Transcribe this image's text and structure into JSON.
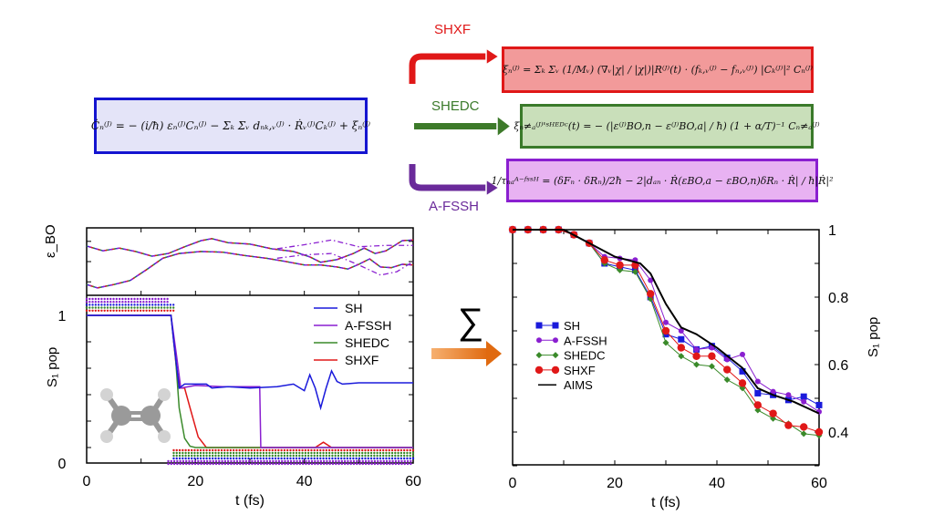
{
  "equations": {
    "main": "Ċₙ⁽ᴶ⁾ = − (i/ħ) εₙ⁽ᴶ⁾Cₙ⁽ᴶ⁾ − Σₖ Σᵥ dₙₖ,ᵥ⁽ᴶ⁾ · Ṙᵥ⁽ᴶ⁾Cₖ⁽ᴶ⁾ + ξₙ⁽ᴶ⁾",
    "shxf": "ξₙ⁽ᴶ⁾ = Σₖ Σᵥ (1/Mᵥ) (∇ᵥ|χ| / |χ|)|R⁽ᴶ⁾(t) · (fₖ,ᵥ⁽ᴶ⁾ − fₙ,ᵥ⁽ᴶ⁾) |Cₖ⁽ᴶ⁾|² Cₙ⁽ᴶ⁾",
    "shedc": "ξₙ≠ₐ⁽ᴶ⁾'ˢᴴᴱᴰᶜ(t) = − (|ε⁽ᴶ⁾BO,n − ε⁽ᴶ⁾BO,a| / ħ) (1 + α/T)⁻¹ Cₙ≠ₐ⁽ᴶ⁾",
    "afssh": "1/τₙₐᴬ⁻ᶠˢˢᴴ = (δFₙ · δRₙ)/2ħ − 2|dₐₙ · Ṙ(εBO,a − εBO,n)δRₙ · Ṙ| / ħ|Ṙ|²"
  },
  "arrows": {
    "shxf": "SHXF",
    "shedc": "SHEDC",
    "afssh": "A-FSSH"
  },
  "sum_symbol": "∑",
  "colors": {
    "SH": "#1a1adb",
    "A-FSSH": "#8a1fd0",
    "SHEDC": "#3a8a2a",
    "SHXF": "#e01818",
    "AIMS": "#000000",
    "orange_arrow": "#e07a20"
  },
  "chart_data": [
    {
      "type": "line",
      "panel": "epsilon_BO",
      "ylabel": "ε_BO",
      "xlim": [
        0,
        60
      ],
      "series": [
        {
          "style": "solid",
          "x": [
            0,
            3,
            6,
            9,
            12,
            15,
            18,
            21,
            23,
            26,
            30,
            34,
            38,
            41,
            43,
            46,
            49,
            51,
            53,
            55,
            58,
            60
          ],
          "y": [
            0.73,
            0.66,
            0.7,
            0.65,
            0.58,
            0.62,
            0.72,
            0.81,
            0.84,
            0.78,
            0.76,
            0.69,
            0.65,
            0.57,
            0.49,
            0.53,
            0.62,
            0.7,
            0.62,
            0.66,
            0.81,
            0.82
          ]
        },
        {
          "style": "solid",
          "x": [
            0,
            2,
            5,
            8,
            11,
            14,
            17,
            21,
            25,
            29,
            33,
            36,
            40,
            43,
            46,
            48,
            50,
            52,
            54,
            56,
            58,
            60
          ],
          "y": [
            0.16,
            0.11,
            0.16,
            0.22,
            0.38,
            0.55,
            0.62,
            0.65,
            0.64,
            0.59,
            0.55,
            0.51,
            0.45,
            0.45,
            0.42,
            0.39,
            0.46,
            0.54,
            0.42,
            0.41,
            0.46,
            0.45
          ]
        },
        {
          "style": "dashdot",
          "x": [
            35,
            40,
            45,
            50,
            55,
            60
          ],
          "y": [
            0.69,
            0.75,
            0.82,
            0.72,
            0.74,
            0.74
          ]
        },
        {
          "style": "dashdot",
          "x": [
            35,
            40,
            45,
            50,
            54,
            57,
            60
          ],
          "y": [
            0.55,
            0.6,
            0.62,
            0.45,
            0.3,
            0.35,
            0.5
          ]
        }
      ]
    },
    {
      "type": "line",
      "panel": "S1_population_single",
      "xlabel": "t (fs)",
      "ylabel": "S₁ pop",
      "xlim": [
        0,
        60
      ],
      "ylim": [
        0,
        1
      ],
      "xticks": [
        "0",
        "20",
        "40",
        "60"
      ],
      "yticks": [
        "0",
        "1"
      ],
      "legend": "top-right",
      "series": [
        {
          "name": "SH",
          "x": [
            0,
            15.5,
            16,
            17,
            18,
            20,
            22,
            23,
            26,
            30,
            35,
            38,
            40,
            41,
            42,
            43,
            44,
            45,
            46,
            47,
            50,
            60
          ],
          "y": [
            1,
            1,
            0.8,
            0.45,
            0.48,
            0.48,
            0.48,
            0.45,
            0.46,
            0.45,
            0.46,
            0.48,
            0.43,
            0.55,
            0.45,
            0.3,
            0.45,
            0.58,
            0.5,
            0.48,
            0.49,
            0.49
          ]
        },
        {
          "name": "A-FSSH",
          "x": [
            0,
            15.5,
            16.5,
            17.3,
            20,
            25,
            31.8,
            32,
            60
          ],
          "y": [
            1,
            1,
            0.7,
            0.45,
            0.47,
            0.46,
            0.46,
            0,
            0
          ]
        },
        {
          "name": "SHEDC",
          "x": [
            0,
            15.5,
            16.3,
            17,
            18,
            19,
            20,
            60
          ],
          "y": [
            1,
            1,
            0.7,
            0.3,
            0.07,
            0.01,
            0,
            0
          ]
        },
        {
          "name": "SHXF",
          "x": [
            0,
            15.5,
            16.5,
            17.2,
            18,
            19,
            20.5,
            22,
            42,
            43.5,
            45,
            60
          ],
          "y": [
            1,
            1,
            0.6,
            0.45,
            0.45,
            0.3,
            0.08,
            0,
            0,
            0.04,
            0,
            0
          ]
        }
      ]
    },
    {
      "type": "line",
      "panel": "S1_population_ensemble",
      "xlabel": "t (fs)",
      "ylabel": "S₁ pop",
      "xlim": [
        0,
        60
      ],
      "ylim": [
        0.3,
        1
      ],
      "xticks": [
        "0",
        "20",
        "40",
        "60"
      ],
      "yticks": [
        "0.4",
        "0.6",
        "0.8",
        "1"
      ],
      "legend": "center-left",
      "series": [
        {
          "name": "SH",
          "marker": "square",
          "x": [
            0,
            3,
            6,
            9,
            12,
            15,
            18,
            21,
            24,
            27,
            30,
            33,
            36,
            39,
            42,
            45,
            48,
            51,
            54,
            57,
            60
          ],
          "y": [
            1,
            1,
            1,
            1,
            0.985,
            0.96,
            0.9,
            0.89,
            0.88,
            0.8,
            0.69,
            0.675,
            0.645,
            0.655,
            0.62,
            0.58,
            0.515,
            0.51,
            0.495,
            0.505,
            0.48
          ]
        },
        {
          "name": "A-FSSH",
          "marker": "circle-small",
          "x": [
            0,
            3,
            6,
            9,
            12,
            15,
            18,
            21,
            24,
            27,
            30,
            33,
            36,
            39,
            42,
            45,
            48,
            51,
            54,
            57,
            60
          ],
          "y": [
            1,
            1,
            1,
            1,
            0.985,
            0.96,
            0.92,
            0.915,
            0.91,
            0.85,
            0.725,
            0.7,
            0.645,
            0.65,
            0.615,
            0.63,
            0.55,
            0.52,
            0.51,
            0.49,
            0.46
          ]
        },
        {
          "name": "SHEDC",
          "marker": "diamond",
          "x": [
            0,
            3,
            6,
            9,
            12,
            15,
            18,
            21,
            24,
            27,
            30,
            33,
            36,
            39,
            42,
            45,
            48,
            51,
            54,
            57,
            60
          ],
          "y": [
            1,
            1,
            1,
            1,
            0.985,
            0.96,
            0.9,
            0.88,
            0.875,
            0.795,
            0.665,
            0.625,
            0.6,
            0.595,
            0.555,
            0.53,
            0.465,
            0.44,
            0.425,
            0.395,
            0.39
          ]
        },
        {
          "name": "SHXF",
          "marker": "circle",
          "x": [
            0,
            3,
            6,
            9,
            12,
            15,
            18,
            21,
            24,
            27,
            30,
            33,
            36,
            39,
            42,
            45,
            48,
            51,
            54,
            57,
            60
          ],
          "y": [
            1,
            1,
            1,
            1,
            0.985,
            0.96,
            0.91,
            0.895,
            0.895,
            0.81,
            0.7,
            0.65,
            0.625,
            0.625,
            0.585,
            0.545,
            0.48,
            0.455,
            0.42,
            0.415,
            0.4
          ]
        },
        {
          "name": "AIMS",
          "marker": "none",
          "x": [
            0,
            10,
            15,
            20,
            25,
            27,
            30,
            33,
            36,
            40,
            45,
            48,
            51,
            55,
            60
          ],
          "y": [
            1,
            1,
            0.96,
            0.92,
            0.9,
            0.87,
            0.78,
            0.71,
            0.69,
            0.65,
            0.59,
            0.53,
            0.51,
            0.49,
            0.455
          ]
        }
      ]
    }
  ]
}
